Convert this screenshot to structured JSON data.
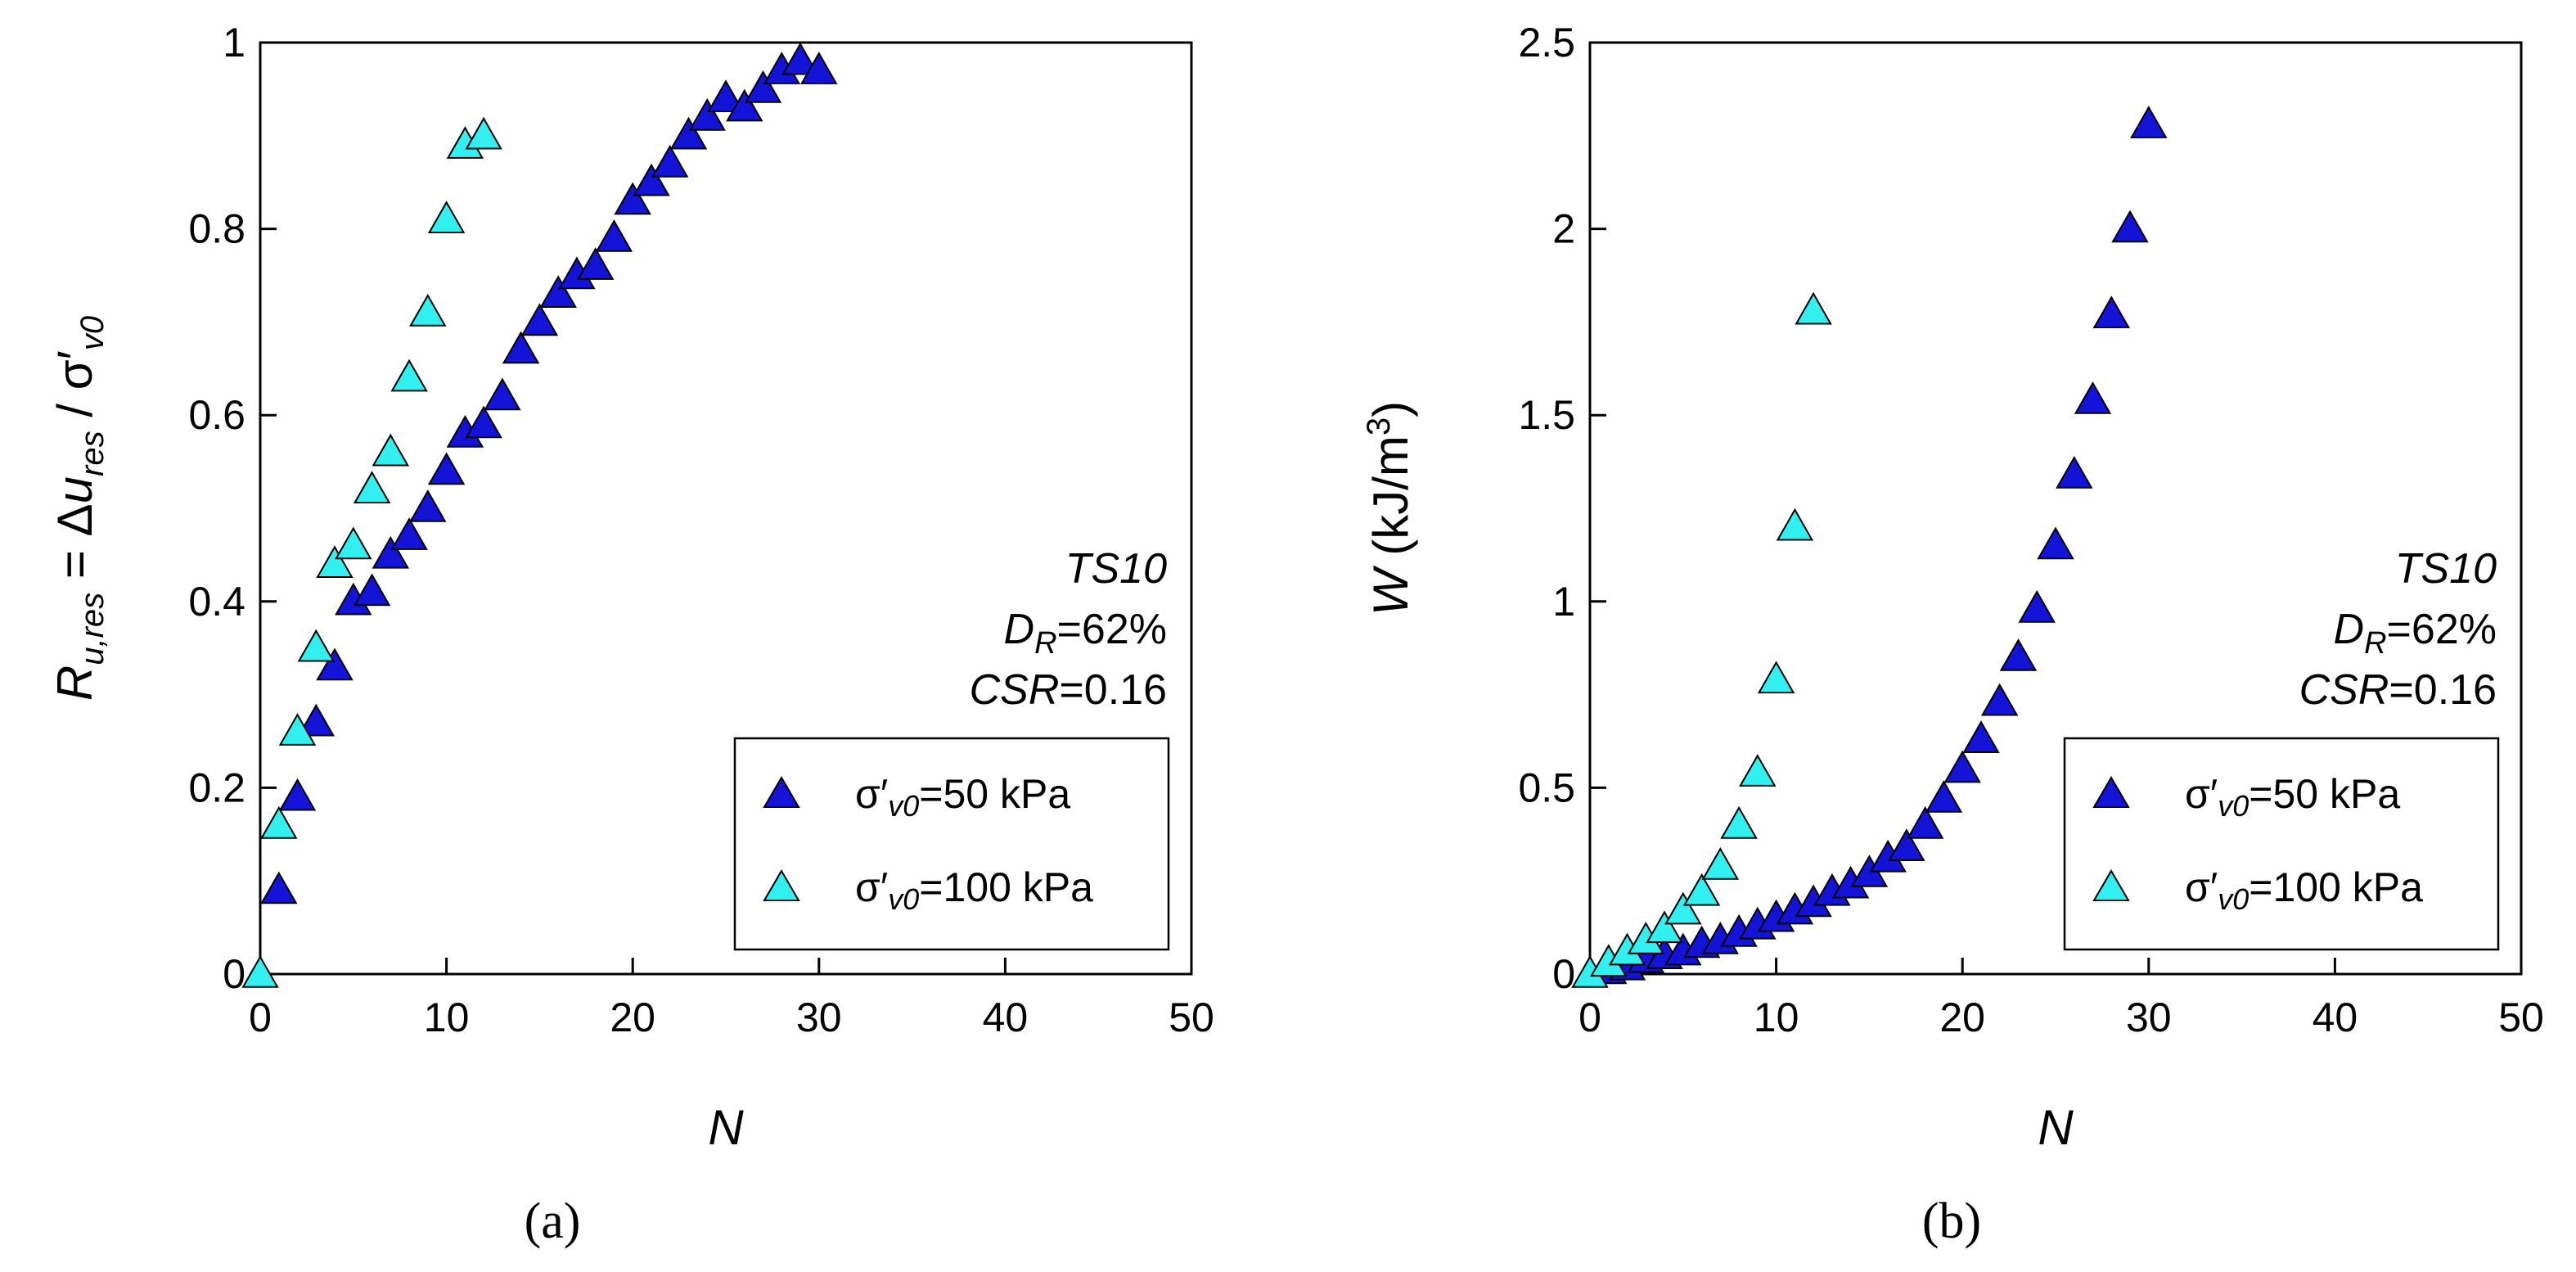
{
  "chart_data": [
    {
      "type": "scatter",
      "panel_label": "(a)",
      "xlabel": "N",
      "ylabel": {
        "R": "R",
        "R_sub": "u,res",
        "eq": " = Δ",
        "u": "u",
        "u_sub": "res",
        "slash": " / σ′",
        "sig_sub": "v0"
      },
      "xlim": [
        0,
        50
      ],
      "ylim": [
        0,
        1
      ],
      "xticks": [
        "0",
        "10",
        "20",
        "30",
        "40",
        "50"
      ],
      "yticks": [
        "0",
        "0.2",
        "0.4",
        "0.6",
        "0.8",
        "1"
      ],
      "annotation": {
        "line1": "TS10",
        "dr_d": "D",
        "dr_sub": "R",
        "dr_val": "=62%",
        "csr_name": "CSR",
        "csr_val": "=0.16"
      },
      "legend_position": "lower-right",
      "series": [
        {
          "name": "σ′v0=50 kPa",
          "legend": {
            "sigma": "σ′",
            "sub": "v0",
            "rest": "=50 kPa"
          },
          "color": "#1414d8",
          "x": [
            1,
            2,
            3,
            4,
            5,
            6,
            7,
            8,
            9,
            10,
            11,
            12,
            13,
            14,
            15,
            16,
            17,
            18,
            19,
            20,
            21,
            22,
            23,
            24,
            25,
            26,
            27,
            28,
            29,
            30
          ],
          "y": [
            0.09,
            0.19,
            0.27,
            0.33,
            0.4,
            0.41,
            0.45,
            0.47,
            0.5,
            0.54,
            0.58,
            0.59,
            0.62,
            0.67,
            0.7,
            0.73,
            0.75,
            0.76,
            0.79,
            0.83,
            0.85,
            0.87,
            0.9,
            0.92,
            0.94,
            0.93,
            0.95,
            0.97,
            0.98,
            0.97
          ]
        },
        {
          "name": "σ′v0=100 kPa",
          "legend": {
            "sigma": "σ′",
            "sub": "v0",
            "rest": "=100 kPa"
          },
          "color": "#33f0f0",
          "x": [
            0,
            1,
            2,
            3,
            4,
            5,
            6,
            7,
            8,
            9,
            10,
            11,
            12
          ],
          "y": [
            0.0,
            0.16,
            0.26,
            0.35,
            0.44,
            0.46,
            0.52,
            0.56,
            0.64,
            0.71,
            0.81,
            0.89,
            0.9
          ]
        }
      ]
    },
    {
      "type": "scatter",
      "panel_label": "(b)",
      "xlabel": "N",
      "ylabel": {
        "W": "W",
        "unit_pre": " (kJ/m",
        "unit_sup": "3",
        "unit_post": ")"
      },
      "xlim": [
        0,
        50
      ],
      "ylim": [
        0,
        2.5
      ],
      "xticks": [
        "0",
        "10",
        "20",
        "30",
        "40",
        "50"
      ],
      "yticks": [
        "0",
        "0.5",
        "1",
        "1.5",
        "2",
        "2.5"
      ],
      "annotation": {
        "line1": "TS10",
        "dr_d": "D",
        "dr_sub": "R",
        "dr_val": "=62%",
        "csr_name": "CSR",
        "csr_val": "=0.16"
      },
      "legend_position": "lower-right",
      "series": [
        {
          "name": "σ′v0=50 kPa",
          "legend": {
            "sigma": "σ′",
            "sub": "v0",
            "rest": "=50 kPa"
          },
          "color": "#1414d8",
          "x": [
            1,
            2,
            3,
            4,
            5,
            6,
            7,
            8,
            9,
            10,
            11,
            12,
            13,
            14,
            15,
            16,
            17,
            18,
            19,
            20,
            21,
            22,
            23,
            24,
            25,
            26,
            27,
            28,
            29,
            30
          ],
          "y": [
            0.01,
            0.02,
            0.04,
            0.05,
            0.06,
            0.08,
            0.09,
            0.11,
            0.13,
            0.15,
            0.17,
            0.19,
            0.22,
            0.24,
            0.27,
            0.31,
            0.34,
            0.4,
            0.47,
            0.55,
            0.63,
            0.73,
            0.85,
            0.98,
            1.15,
            1.34,
            1.54,
            1.77,
            2.0,
            2.28
          ]
        },
        {
          "name": "σ′v0=100 kPa",
          "legend": {
            "sigma": "σ′",
            "sub": "v0",
            "rest": "=100 kPa"
          },
          "color": "#33f0f0",
          "x": [
            0,
            1,
            2,
            3,
            4,
            5,
            6,
            7,
            8,
            9,
            10,
            11,
            12
          ],
          "y": [
            0.0,
            0.03,
            0.06,
            0.09,
            0.12,
            0.17,
            0.22,
            0.29,
            0.4,
            0.54,
            0.79,
            1.2,
            1.78
          ]
        }
      ]
    }
  ]
}
